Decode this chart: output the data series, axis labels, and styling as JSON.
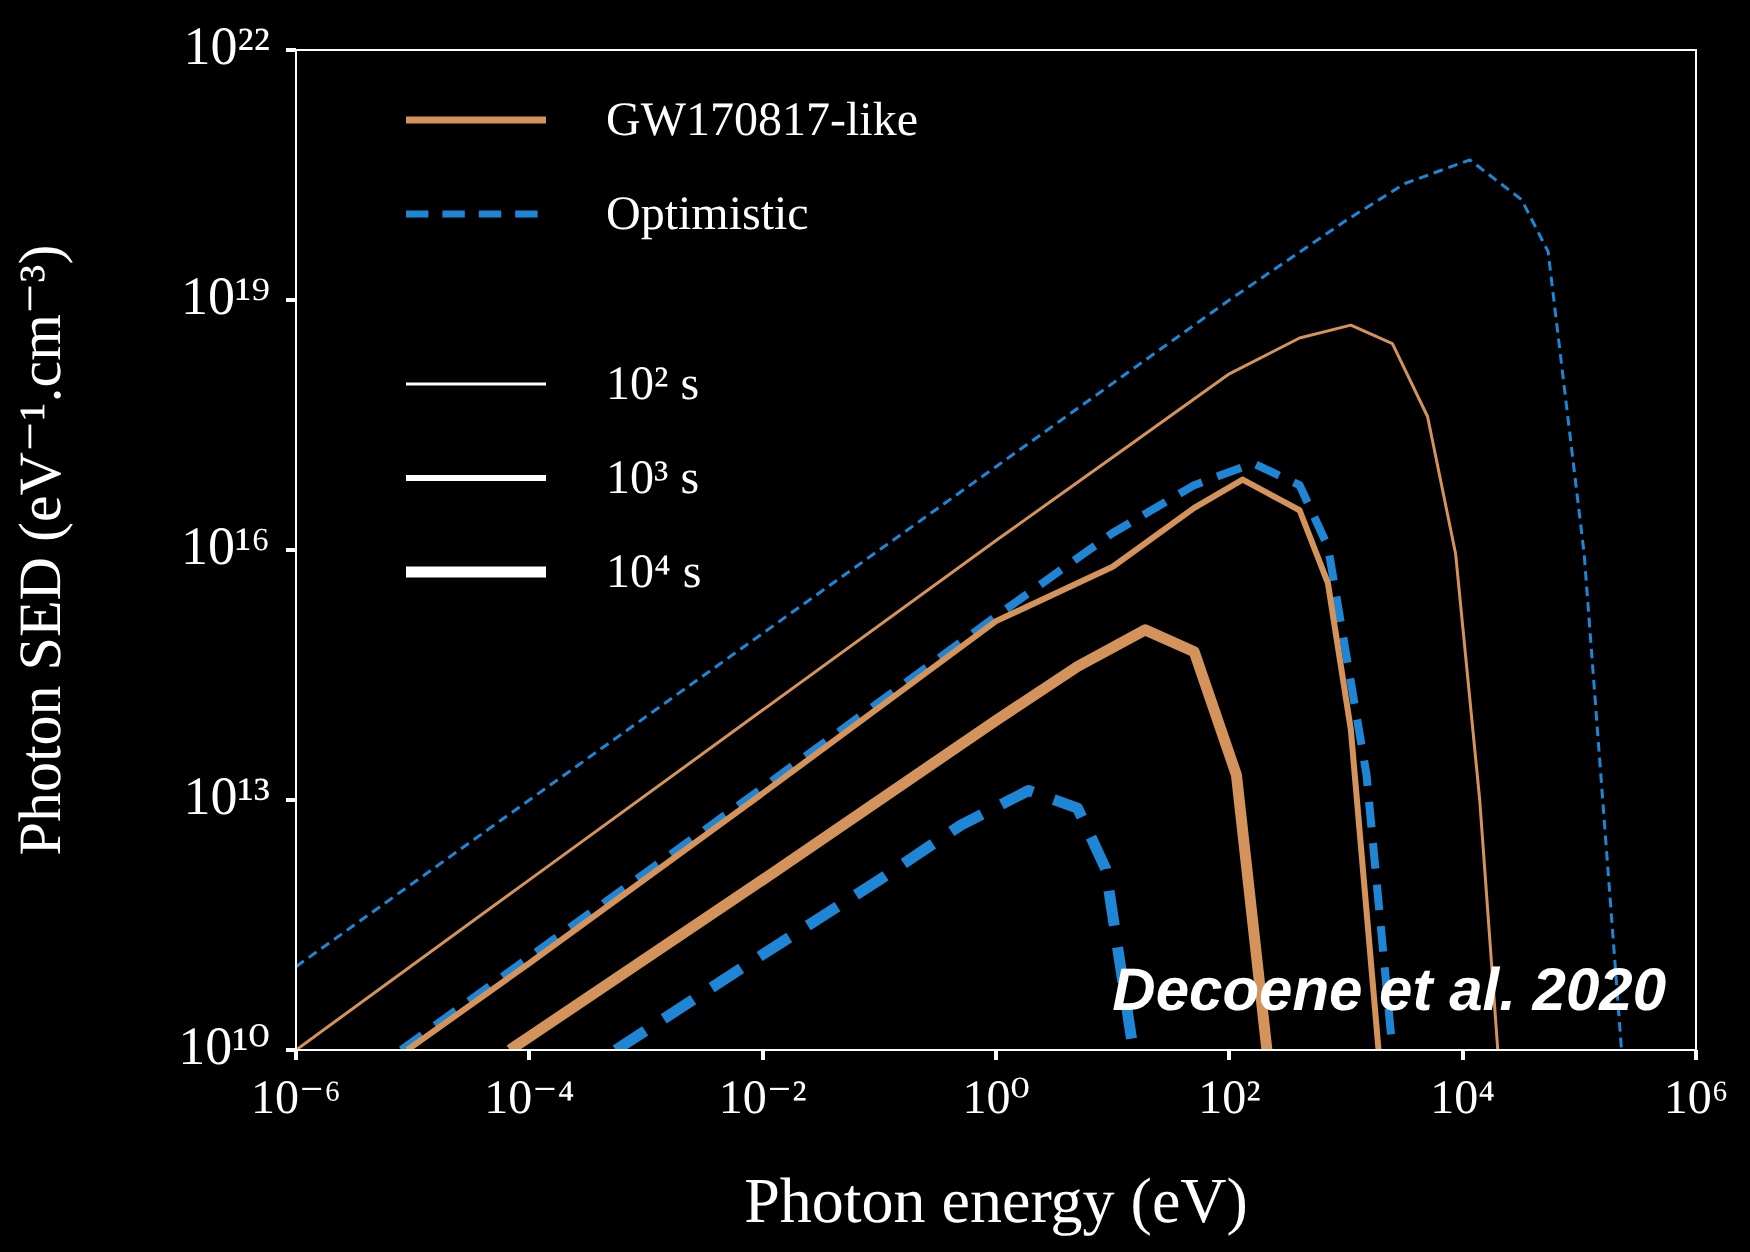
{
  "chart_data": {
    "type": "line",
    "xlabel": "Photon energy (eV)",
    "ylabel": "Photon SED (eV⁻¹.cm⁻³)",
    "log": "xy",
    "legend": "top left",
    "xlim": [
      1e-06,
      1000000.0
    ],
    "ylim": [
      10000000000.0,
      1e+22
    ],
    "xticks": [
      {
        "value": 1e-06,
        "label": "10⁻⁶"
      },
      {
        "value": 0.0001,
        "label": "10⁻⁴"
      },
      {
        "value": 0.01,
        "label": "10⁻²"
      },
      {
        "value": 1,
        "label": "10⁰"
      },
      {
        "value": 100,
        "label": "10²"
      },
      {
        "value": 10000.0,
        "label": "10⁴"
      },
      {
        "value": 1000000.0,
        "label": "10⁶"
      }
    ],
    "yticks": [
      {
        "value": 10000000000.0,
        "label": "10¹⁰"
      },
      {
        "value": 10000000000000.0,
        "label": "10¹³"
      },
      {
        "value": 1e+16,
        "label": "10¹⁶"
      },
      {
        "value": 1e+19,
        "label": "10¹⁹"
      },
      {
        "value": 1e+22,
        "label": "10²²"
      }
    ],
    "annotations": [
      "Decoene et al. 2020"
    ],
    "series": [
      {
        "name": "GW170817-like",
        "color": "#d4935a",
        "line_style": "solid"
      },
      {
        "name": "Optimistic",
        "color": "#1f86d6",
        "line_style": "dashed"
      },
      {
        "name": "10² s",
        "color": "#ffffff",
        "line_style": "solid"
      },
      {
        "name": "10³ s",
        "color": "#ffffff",
        "line_style": "solid"
      },
      {
        "name": "10⁴ s",
        "color": "#ffffff",
        "line_style": "solid"
      },
      {
        "color": "#d4935a",
        "line_style": "solid",
        "x": [
          1e-06,
          0.0001,
          0.01,
          1,
          10,
          100,
          400,
          1100,
          2500,
          5000,
          8700,
          14000.0,
          20000.0
        ],
        "values": [
          10000000000.0,
          1100000000000.0,
          120000000000000.0,
          1.3e+16,
          1.3e+17,
          1.3e+18,
          3.5e+18,
          5e+18,
          3e+18,
          4e+17,
          9000000000000000.0,
          10000000000000.0,
          10000000000.0
        ]
      },
      {
        "color": "#d4935a",
        "line_style": "solid",
        "x": [
          9e-06,
          0.0001,
          0.01,
          1,
          10,
          50,
          130,
          400,
          700,
          1100,
          1900
        ],
        "values": [
          10000000000.0,
          110000000000.0,
          12000000000000.0,
          1400000000000000.0,
          6300000000000000.0,
          3.2e+16,
          7e+16,
          3e+16,
          4000000000000000.0,
          70000000000000.0,
          10000000000.0
        ]
      },
      {
        "color": "#d4935a",
        "line_style": "solid",
        "x": [
          6.8e-05,
          0.01,
          1,
          5,
          19,
          50,
          115,
          210
        ],
        "values": [
          10000000000.0,
          1100000000000.0,
          90000000000000.0,
          400000000000000.0,
          1100000000000000.0,
          600000000000000.0,
          20000000000000.0,
          10000000000.0
        ]
      },
      {
        "color": "#1f86d6",
        "line_style": "dashed",
        "x": [
          1e-06,
          0.0001,
          0.01,
          1,
          100,
          1000,
          3200,
          11500.0,
          32000.0,
          54000.0,
          110000.0,
          230000.0
        ],
        "values": [
          100000000000.0,
          10000000000000.0,
          1000000000000000.0,
          1e+17,
          1e+19,
          9e+19,
          2.5e+20,
          4.8e+20,
          1.6e+20,
          3.8e+19,
          9000000000000000.0,
          10000000000.0
        ]
      },
      {
        "color": "#1f86d6",
        "line_style": "dashed",
        "x": [
          8e-06,
          0.0001,
          0.01,
          1,
          10,
          50,
          160,
          400,
          700,
          1500,
          2500
        ],
        "values": [
          10000000000.0,
          130000000000.0,
          14000000000000.0,
          1600000000000000.0,
          1.6e+16,
          6e+16,
          1.1e+17,
          6e+16,
          1.1e+16,
          20000000000000.0,
          10000000000.0
        ]
      },
      {
        "color": "#1f86d6",
        "line_style": "dashed",
        "x": [
          0.00055,
          0.01,
          0.1,
          0.5,
          1.9,
          5,
          8.7,
          15
        ],
        "values": [
          10000000000.0,
          140000000000.0,
          1100000000000.0,
          5000000000000.0,
          13000000000000.0,
          8000000000000.0,
          1500000000000.0,
          10000000000.0
        ]
      }
    ]
  }
}
